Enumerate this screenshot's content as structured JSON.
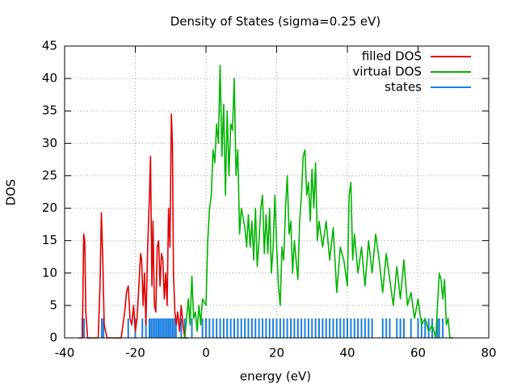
{
  "chart_data": {
    "type": "line",
    "title": "Density of States (sigma=0.25 eV)",
    "xlabel": "energy (eV)",
    "ylabel": "DOS",
    "xlim": [
      -40,
      80
    ],
    "xticks": [
      -40,
      -20,
      0,
      20,
      40,
      60,
      80
    ],
    "ylim": [
      0,
      45
    ],
    "yticks": [
      0,
      5,
      10,
      15,
      20,
      25,
      30,
      35,
      40,
      45
    ],
    "grid": true,
    "legend": "top-right",
    "series": [
      {
        "name": "filled DOS",
        "color": "#e00000",
        "type": "line",
        "x": [
          -36,
          -35,
          -34.6,
          -34.3,
          -34,
          -33.5,
          -32,
          -30.5,
          -30,
          -29.6,
          -29.2,
          -28.8,
          -28,
          -24,
          -23,
          -22.5,
          -22,
          -21.5,
          -21,
          -20.5,
          -20,
          -19.5,
          -19,
          -18.5,
          -18.2,
          -17.8,
          -17.4,
          -17,
          -16.5,
          -16,
          -15.7,
          -15.3,
          -15,
          -14.6,
          -14.2,
          -13.8,
          -13.4,
          -13,
          -12.6,
          -12.2,
          -11.8,
          -11.4,
          -11,
          -10.6,
          -10.2,
          -9.8,
          -9.5,
          -9.2,
          -8.8,
          -8.4,
          -8,
          -7.5,
          -7,
          -6.5,
          -6,
          -5
        ],
        "values": [
          0,
          0,
          16,
          15,
          4,
          0,
          0,
          0,
          8,
          19.3,
          12,
          2,
          0,
          0,
          4,
          7,
          8,
          3,
          2,
          5,
          1,
          3,
          8,
          13,
          12,
          5,
          10,
          2,
          14,
          22,
          28,
          8,
          18,
          5,
          4,
          14,
          15,
          8,
          13,
          12,
          6,
          10,
          5,
          20,
          14,
          34.5,
          30,
          10,
          4,
          2,
          4,
          1,
          5,
          2,
          0,
          0
        ]
      },
      {
        "name": "virtual DOS",
        "color": "#00b400",
        "type": "line",
        "x": [
          -8,
          -6,
          -5,
          -4.5,
          -4,
          -3.5,
          -3,
          -2.5,
          -2,
          -1.5,
          -1,
          0,
          0.5,
          1,
          1.5,
          2,
          2.5,
          3,
          3.5,
          4,
          4.5,
          5,
          5.5,
          6,
          6.5,
          7,
          7.5,
          8,
          8.5,
          9,
          9.5,
          10,
          11,
          11.5,
          12,
          12.5,
          13,
          13.5,
          14,
          14.5,
          15,
          15.5,
          16,
          16.5,
          17,
          17.5,
          18,
          18.5,
          19,
          19.5,
          20,
          20.5,
          21,
          21.5,
          22,
          22.5,
          23,
          23.5,
          24,
          24.5,
          25,
          25.5,
          26,
          26.5,
          27,
          27.5,
          28,
          28.5,
          29,
          29.5,
          30,
          30.5,
          31,
          31.5,
          32,
          33,
          34,
          35,
          36,
          37,
          38,
          39,
          40,
          40.5,
          41,
          41.5,
          42,
          43,
          44,
          45,
          46,
          47,
          48,
          49,
          50,
          51,
          52,
          53,
          54,
          55,
          56,
          57,
          58,
          59,
          60,
          61,
          62,
          63,
          64,
          65,
          66,
          66.5,
          67,
          67.5,
          68,
          68.5,
          69,
          70
        ],
        "values": [
          0,
          0,
          6,
          2,
          9.5,
          3,
          4,
          1,
          5,
          2,
          6,
          5,
          15,
          20,
          22,
          29,
          27,
          33,
          30,
          42,
          28,
          36,
          22,
          35,
          25,
          33,
          32,
          40,
          25,
          29,
          16,
          20,
          17,
          14,
          19,
          14,
          18,
          12,
          20,
          11,
          15,
          20,
          22,
          13,
          19,
          13,
          20,
          10,
          14,
          22,
          14,
          8,
          5,
          14,
          12,
          20,
          25,
          16,
          18,
          10,
          15,
          12,
          9,
          18,
          22,
          28,
          29,
          22,
          24,
          18,
          26,
          20,
          27,
          15,
          18,
          14,
          18,
          12,
          17,
          7,
          14,
          12,
          8,
          22,
          24,
          12,
          16,
          10,
          14,
          8,
          15,
          10,
          16,
          12,
          7,
          13,
          9,
          5,
          11,
          6,
          12,
          5,
          7,
          3,
          6,
          2,
          3,
          1,
          2,
          0,
          10,
          9,
          6,
          9,
          2,
          3,
          0,
          0
        ]
      },
      {
        "name": "states",
        "color": "#1a7fe0",
        "type": "impulse",
        "x": [
          -35,
          -34.5,
          -29.5,
          -29,
          -22,
          -20,
          -18,
          -17,
          -16,
          -15.5,
          -15,
          -14.5,
          -14,
          -13.5,
          -13,
          -12.5,
          -12,
          -11.5,
          -11,
          -10.5,
          -10,
          -9.5,
          -9,
          -8.5,
          -7,
          -6,
          -4,
          -1,
          0,
          1,
          2,
          3,
          4,
          5,
          6,
          7,
          8,
          9,
          10,
          11,
          12,
          13,
          14,
          15,
          16,
          17,
          18,
          19,
          20,
          21,
          22,
          23,
          24,
          25,
          26,
          27,
          28,
          29,
          30,
          31,
          32,
          33,
          34,
          35,
          36,
          37,
          38,
          39,
          40,
          41,
          42,
          43,
          44,
          45,
          46,
          47,
          50,
          51,
          52,
          54,
          55,
          56,
          58,
          60,
          61,
          62,
          63,
          64,
          65.5,
          66,
          67
        ],
        "values": [
          3,
          3,
          3,
          3,
          3,
          3,
          3,
          3,
          3,
          3,
          3,
          3,
          3,
          3,
          3,
          3,
          3,
          3,
          3,
          3,
          3,
          3,
          3,
          3,
          3,
          3,
          3,
          3,
          3,
          3,
          3,
          3,
          3,
          3,
          3,
          3,
          3,
          3,
          3,
          3,
          3,
          3,
          3,
          3,
          3,
          3,
          3,
          3,
          3,
          3,
          3,
          3,
          3,
          3,
          3,
          3,
          3,
          3,
          3,
          3,
          3,
          3,
          3,
          3,
          3,
          3,
          3,
          3,
          3,
          3,
          3,
          3,
          3,
          3,
          3,
          3,
          3,
          3,
          3,
          3,
          3,
          3,
          3,
          3,
          3,
          3,
          3,
          3,
          3,
          3,
          3
        ]
      }
    ]
  }
}
